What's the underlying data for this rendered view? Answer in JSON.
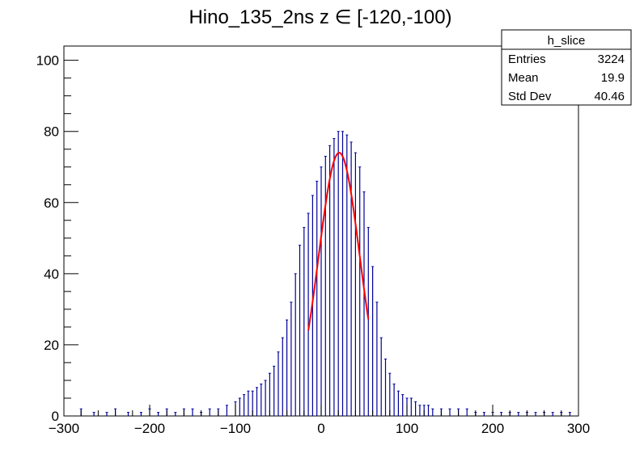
{
  "chart_data": {
    "type": "histogram",
    "title": "Hino_135_2ns z  ∈ [-120,-100)",
    "xlabel": "",
    "ylabel": "",
    "xlim": [
      -300,
      300
    ],
    "ylim": [
      0,
      104
    ],
    "x_ticks": [
      -300,
      -200,
      -100,
      0,
      100,
      200,
      300
    ],
    "y_ticks": [
      0,
      20,
      40,
      60,
      80,
      100
    ],
    "grid": false,
    "histogram_color": "#000099",
    "fit_color": "#ff0000",
    "stats_box": {
      "name": "h_slice",
      "rows": [
        {
          "label": "Entries",
          "value": "3224"
        },
        {
          "label": "Mean",
          "value": "19.9"
        },
        {
          "label": "Std Dev",
          "value": "40.46"
        }
      ]
    },
    "fit": {
      "type": "gaussian",
      "amplitude": 74,
      "mean": 21,
      "sigma": 24,
      "range": [
        -15,
        55
      ]
    },
    "bin_width": 1,
    "series": [
      {
        "x": [
          -280,
          -265,
          -250,
          -240,
          -225,
          -210,
          -200,
          -190,
          -180,
          -170,
          -160,
          -150,
          -140,
          -130,
          -120,
          -110,
          -100,
          -95,
          -90,
          -85,
          -80,
          -75,
          -70,
          -65,
          -60,
          -55,
          -50,
          -45,
          -40,
          -35,
          -30,
          -25,
          -20,
          -15,
          -10,
          -5,
          0,
          5,
          10,
          15,
          20,
          25,
          30,
          35,
          40,
          45,
          50,
          55,
          60,
          65,
          70,
          75,
          80,
          85,
          90,
          95,
          100,
          105,
          110,
          115,
          120,
          125,
          130,
          140,
          150,
          160,
          170,
          180,
          190,
          200,
          210,
          220,
          230,
          240,
          250,
          260,
          270,
          280,
          290
        ],
        "values": [
          2,
          1,
          1,
          2,
          1,
          1,
          2,
          1,
          2,
          1,
          2,
          2,
          1,
          2,
          2,
          3,
          4,
          5,
          6,
          7,
          7,
          8,
          9,
          10,
          12,
          14,
          18,
          22,
          27,
          32,
          40,
          48,
          53,
          57,
          62,
          66,
          70,
          73,
          76,
          78,
          80,
          80,
          79,
          77,
          74,
          70,
          63,
          53,
          42,
          32,
          22,
          16,
          12,
          9,
          7,
          6,
          5,
          5,
          4,
          3,
          3,
          3,
          2,
          2,
          2,
          2,
          2,
          1,
          1,
          1,
          1,
          1,
          1,
          1,
          1,
          1,
          1,
          1,
          1
        ]
      }
    ]
  }
}
